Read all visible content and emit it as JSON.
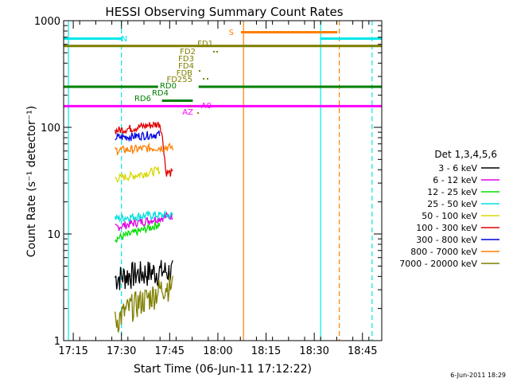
{
  "chart_data": {
    "type": "line",
    "title": "HESSI Observing Summary Count Rates",
    "ylabel": "Count Rate (s⁻¹ detector⁻¹)",
    "xlabel": "Start Time (06-Jun-11 17:12:22)",
    "yscale": "log",
    "ylim": [
      1,
      1000
    ],
    "xlim_minutes": [
      17.2,
      18.85
    ],
    "x_ticks": [
      "17:15",
      "17:30",
      "17:45",
      "18:00",
      "18:15",
      "18:30",
      "18:45"
    ],
    "y_ticks": [
      "1",
      "10",
      "100",
      "1000"
    ],
    "footer": "6-Jun-2011 18:29",
    "legend_title": "Det 1,3,4,5,6",
    "series": [
      {
        "name": "3 - 6 keV",
        "color": "#000000",
        "points": [
          [
            17.467,
            3.9
          ],
          [
            17.55,
            4.2
          ],
          [
            17.65,
            4.4
          ],
          [
            17.73,
            4.5
          ],
          [
            17.77,
            4.4
          ]
        ]
      },
      {
        "name": "6 - 12 keV",
        "color": "#e000e0",
        "points": [
          [
            17.467,
            11.5
          ],
          [
            17.55,
            12.5
          ],
          [
            17.65,
            13.5
          ],
          [
            17.73,
            14.5
          ],
          [
            17.77,
            15
          ]
        ]
      },
      {
        "name": "12 - 25 keV",
        "color": "#00e000",
        "points": [
          [
            17.467,
            9
          ],
          [
            17.55,
            10
          ],
          [
            17.65,
            11.5
          ],
          [
            17.7,
            12.5
          ]
        ]
      },
      {
        "name": "25 - 50 keV",
        "color": "#00e0e0",
        "points": [
          [
            17.467,
            14
          ],
          [
            17.55,
            14.5
          ],
          [
            17.65,
            15
          ],
          [
            17.73,
            15
          ],
          [
            17.77,
            15
          ]
        ]
      },
      {
        "name": "50 - 100 keV",
        "color": "#d8d800",
        "points": [
          [
            17.467,
            33
          ],
          [
            17.55,
            35
          ],
          [
            17.65,
            38
          ],
          [
            17.7,
            40
          ]
        ]
      },
      {
        "name": "100 - 300 keV",
        "color": "#e00000",
        "points": [
          [
            17.467,
            93
          ],
          [
            17.55,
            98
          ],
          [
            17.65,
            105
          ],
          [
            17.7,
            108
          ],
          [
            17.73,
            38
          ],
          [
            17.77,
            37
          ]
        ]
      },
      {
        "name": "300 - 800 keV",
        "color": "#0000e0",
        "points": [
          [
            17.467,
            80
          ],
          [
            17.55,
            82
          ],
          [
            17.65,
            85
          ],
          [
            17.7,
            86
          ]
        ]
      },
      {
        "name": "800 - 7000 keV",
        "color": "#ff7f00",
        "points": [
          [
            17.467,
            61
          ],
          [
            17.55,
            62
          ],
          [
            17.65,
            64
          ],
          [
            17.73,
            65
          ],
          [
            17.77,
            65
          ]
        ]
      },
      {
        "name": "7000 - 20000 keV",
        "color": "#7f7f00",
        "points": [
          [
            17.467,
            1.5
          ],
          [
            17.55,
            2.1
          ],
          [
            17.65,
            2.6
          ],
          [
            17.73,
            3.3
          ],
          [
            17.77,
            3.3
          ]
        ]
      }
    ],
    "flag_bars": [
      {
        "label": "N",
        "color": "#00e8e8",
        "level": 680,
        "segments": [
          [
            17.2,
            17.5
          ],
          [
            18.53,
            18.85
          ]
        ]
      },
      {
        "label": "S",
        "color": "#ff7f00",
        "level": 780,
        "segments": [
          [
            18.12,
            18.62
          ]
        ]
      },
      {
        "label": "",
        "color": "#7f7f00",
        "level": 580,
        "segments": [
          [
            17.2,
            18.85
          ]
        ]
      },
      {
        "label": "RD0",
        "color": "#007f00",
        "level": 240,
        "segments": [
          [
            17.2,
            17.69
          ],
          [
            17.9,
            18.85
          ]
        ]
      },
      {
        "label": "RD6",
        "color": "#007f00",
        "level": 178,
        "segments": [
          [
            17.71,
            17.87
          ]
        ]
      },
      {
        "label": "",
        "color": "#ff00ff",
        "level": 158,
        "segments": [
          [
            17.2,
            18.85
          ]
        ]
      }
    ],
    "flag_labels": [
      {
        "text": "FD1",
        "color": "#7f7f00"
      },
      {
        "text": "FD2",
        "color": "#7f7f00"
      },
      {
        "text": "FD3",
        "color": "#7f7f00"
      },
      {
        "text": "FD4",
        "color": "#7f7f00"
      },
      {
        "text": "FDB",
        "color": "#7f7f00"
      },
      {
        "text": "FD255",
        "color": "#7f7f00"
      },
      {
        "text": "RD0",
        "color": "#007f00"
      },
      {
        "text": "RD4",
        "color": "#007f00"
      },
      {
        "text": "RD6",
        "color": "#007f00"
      },
      {
        "text": "A0",
        "color": "#ff00ff"
      },
      {
        "text": "AZ",
        "color": "#ff00ff"
      },
      {
        "text": "N",
        "color": "#00e8e8"
      },
      {
        "text": "S",
        "color": "#ff7f00"
      }
    ],
    "vertical_lines": [
      {
        "time": 17.225,
        "color": "#00e8e8",
        "style": "solid"
      },
      {
        "time": 17.5,
        "color": "#00e8e8",
        "style": "dashed"
      },
      {
        "time": 18.133,
        "color": "#ff7f00",
        "style": "solid"
      },
      {
        "time": 18.533,
        "color": "#00e8e8",
        "style": "solid"
      },
      {
        "time": 18.63,
        "color": "#ff7f00",
        "style": "dashed"
      },
      {
        "time": 18.8,
        "color": "#00e8e8",
        "style": "dashed"
      }
    ]
  }
}
